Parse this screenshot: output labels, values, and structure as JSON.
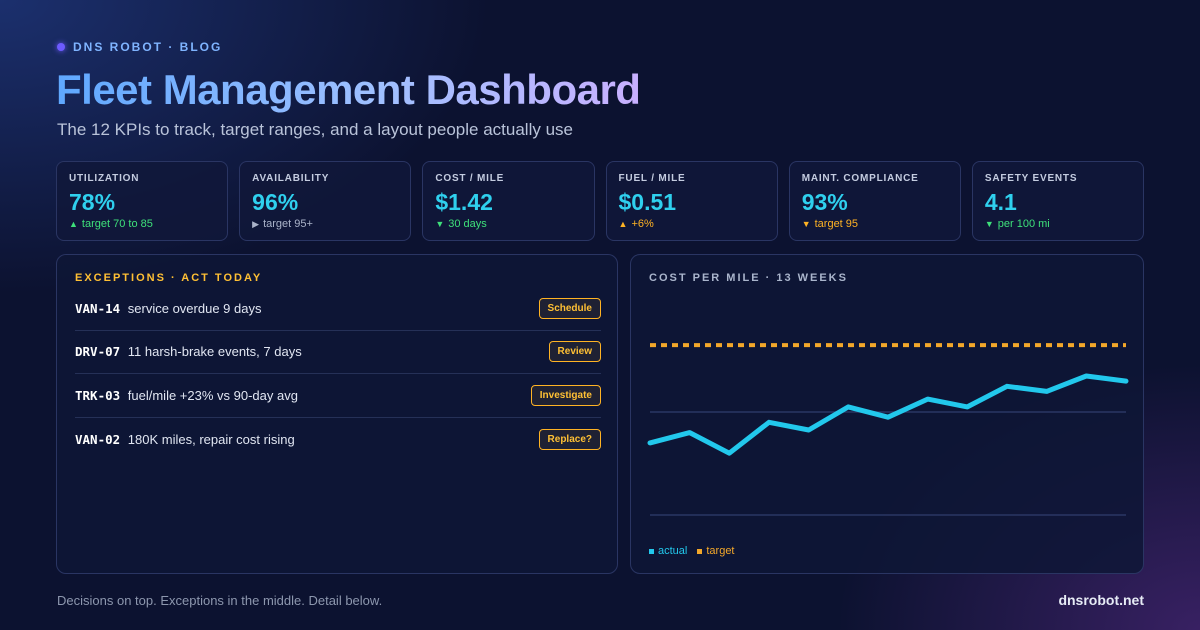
{
  "brand": {
    "label": "DNS ROBOT · BLOG"
  },
  "header": {
    "title": "Fleet Management Dashboard",
    "subtitle": "The 12 KPIs to track, target ranges, and a layout people actually use"
  },
  "kpis": [
    {
      "label": "UTILIZATION",
      "value": "78%",
      "arrow": "▲",
      "note": "target 70 to 85",
      "note_color": "green"
    },
    {
      "label": "AVAILABILITY",
      "value": "96%",
      "arrow": "▶",
      "note": "target 95+",
      "note_color": "grey"
    },
    {
      "label": "COST / MILE",
      "value": "$1.42",
      "arrow": "▼",
      "note": "30 days",
      "note_color": "green"
    },
    {
      "label": "FUEL / MILE",
      "value": "$0.51",
      "arrow": "▲",
      "note": "+6%",
      "note_color": "orange"
    },
    {
      "label": "MAINT. COMPLIANCE",
      "value": "93%",
      "arrow": "▼",
      "note": "target 95",
      "note_color": "orange"
    },
    {
      "label": "SAFETY EVENTS",
      "value": "4.1",
      "arrow": "▼",
      "note": "per 100 mi",
      "note_color": "green"
    }
  ],
  "exceptions": {
    "heading": "EXCEPTIONS · ACT TODAY",
    "items": [
      {
        "id": "VAN-14",
        "text": "service overdue 9 days",
        "action": "Schedule"
      },
      {
        "id": "DRV-07",
        "text": "11 harsh-brake events, 7 days",
        "action": "Review"
      },
      {
        "id": "TRK-03",
        "text": "fuel/mile +23% vs 90-day avg",
        "action": "Investigate"
      },
      {
        "id": "VAN-02",
        "text": "180K miles, repair cost rising",
        "action": "Replace?"
      }
    ]
  },
  "chart_data": {
    "type": "line",
    "title": "COST PER MILE · 13 WEEKS",
    "x": [
      1,
      2,
      3,
      4,
      5,
      6,
      7,
      8,
      9,
      10,
      11,
      12,
      13
    ],
    "series": [
      {
        "name": "actual",
        "color": "#22c8ec",
        "values": [
          1.34,
          1.36,
          1.32,
          1.38,
          1.365,
          1.41,
          1.39,
          1.425,
          1.41,
          1.45,
          1.44,
          1.47,
          1.46
        ]
      },
      {
        "name": "target",
        "color": "#f2a72a",
        "style": "dashed",
        "values": [
          1.53,
          1.53,
          1.53,
          1.53,
          1.53,
          1.53,
          1.53,
          1.53,
          1.53,
          1.53,
          1.53,
          1.53,
          1.53
        ]
      }
    ],
    "ylim": [
      1.2,
      1.6
    ],
    "grid_values": [
      1.2,
      1.4
    ],
    "grid": true,
    "legend": "bottom-left"
  },
  "footer": {
    "note": "Decisions on top. Exceptions in the middle. Detail below.",
    "site": "dnsrobot.net"
  }
}
